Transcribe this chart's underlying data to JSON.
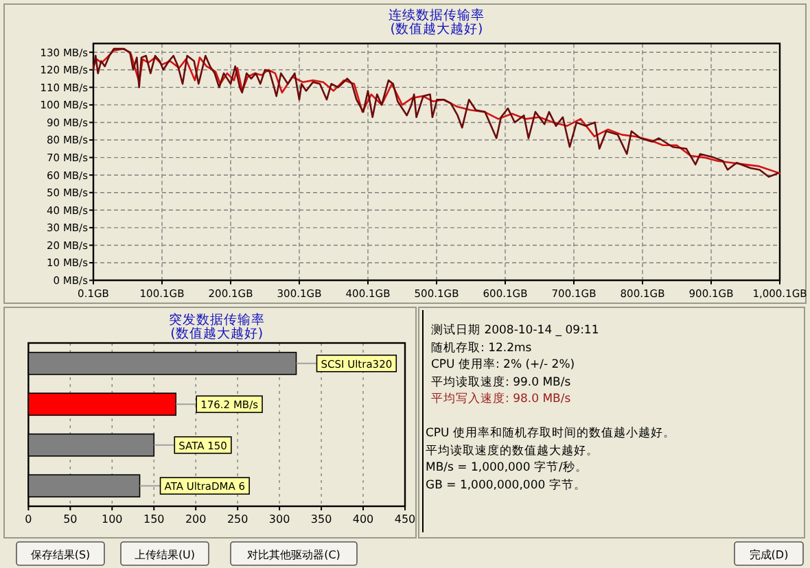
{
  "chart_data": [
    {
      "type": "line",
      "title": "连续数据传输率",
      "subtitle": "(数值越大越好)",
      "grid": true,
      "line_style": "solid",
      "xlim": [
        0.1,
        1000.1
      ],
      "ylim": [
        0,
        135
      ],
      "xticks": [
        {
          "value": 0.1,
          "label": "0.1GB"
        },
        {
          "value": 100.1,
          "label": "100.1GB"
        },
        {
          "value": 200.1,
          "label": "200.1GB"
        },
        {
          "value": 300.1,
          "label": "300.1GB"
        },
        {
          "value": 400.1,
          "label": "400.1GB"
        },
        {
          "value": 500.1,
          "label": "500.1GB"
        },
        {
          "value": 600.1,
          "label": "600.1GB"
        },
        {
          "value": 700.1,
          "label": "700.1GB"
        },
        {
          "value": 800.1,
          "label": "800.1GB"
        },
        {
          "value": 900.1,
          "label": "900.1GB"
        },
        {
          "value": 1000.1,
          "label": "1,000.1GB"
        }
      ],
      "yticks": [
        {
          "value": 0,
          "label": "0 MB/s"
        },
        {
          "value": 10,
          "label": "10 MB/s"
        },
        {
          "value": 20,
          "label": "20 MB/s"
        },
        {
          "value": 30,
          "label": "30 MB/s"
        },
        {
          "value": 40,
          "label": "40 MB/s"
        },
        {
          "value": 50,
          "label": "50 MB/s"
        },
        {
          "value": 60,
          "label": "60 MB/s"
        },
        {
          "value": 70,
          "label": "70 MB/s"
        },
        {
          "value": 80,
          "label": "80 MB/s"
        },
        {
          "value": 90,
          "label": "90 MB/s"
        },
        {
          "value": 100,
          "label": "100 MB/s"
        },
        {
          "value": 110,
          "label": "110 MB/s"
        },
        {
          "value": 120,
          "label": "120 MB/s"
        },
        {
          "value": 130,
          "label": "130 MB/s"
        }
      ],
      "series": [
        {
          "color": "#d41414",
          "x": [
            0.1,
            5,
            12,
            20,
            30,
            45,
            55,
            60,
            66.8,
            72,
            80,
            90,
            100,
            112,
            125,
            135,
            148,
            155,
            165,
            178,
            185,
            195,
            205,
            210,
            217,
            225,
            235,
            245,
            255,
            265,
            275,
            290,
            305,
            320,
            335,
            350,
            365,
            380,
            392,
            405,
            420,
            435,
            450,
            465,
            480,
            495,
            510,
            530,
            550,
            570,
            590,
            610,
            630,
            650,
            670,
            690,
            710,
            730,
            750,
            770,
            790,
            810,
            830,
            850,
            870,
            890,
            910,
            930,
            950,
            970,
            985,
            1000.1
          ],
          "values": [
            122,
            126,
            124,
            127,
            131,
            132,
            129,
            122,
            113,
            126,
            124,
            127,
            123,
            125,
            121,
            126,
            114,
            127,
            122,
            119,
            112,
            118,
            114,
            121,
            108,
            116,
            118,
            117,
            120,
            118,
            107,
            116,
            113,
            114,
            113,
            108,
            114,
            112,
            96,
            106,
            100,
            112,
            100,
            104,
            105,
            102,
            103,
            99,
            97,
            96,
            92,
            95,
            92,
            93,
            90,
            88,
            92,
            82,
            86,
            83,
            82,
            80,
            77,
            77,
            71,
            70,
            68,
            67,
            66,
            65,
            63,
            61
          ]
        },
        {
          "color": "#6a0c0c",
          "x": [
            0.1,
            3.4,
            6.8,
            11.4,
            16.8,
            23.4,
            30.1,
            43.4,
            53.4,
            58.1,
            63.4,
            66.8,
            70.1,
            76.8,
            83.4,
            90.1,
            96.8,
            102.1,
            110.1,
            116.8,
            123.4,
            130.1,
            136.8,
            146.8,
            153.4,
            163.4,
            170.1,
            176.8,
            183.4,
            190.1,
            200.1,
            206.8,
            213.4,
            216.8,
            223.4,
            230.1,
            236.8,
            243.4,
            250.1,
            256.8,
            263.4,
            266.8,
            273.4,
            283.4,
            293.4,
            300.1,
            303.4,
            310.1,
            320.1,
            330.1,
            340.1,
            346.8,
            356.8,
            370.1,
            376.8,
            383.4,
            393.4,
            400.1,
            406.8,
            413.4,
            420.1,
            430.1,
            436.8,
            443.4,
            450.1,
            456.8,
            463.4,
            467.3,
            470.7,
            480.7,
            490.7,
            494,
            500.7,
            510.7,
            520.7,
            530.7,
            537.3,
            547.3,
            557.3,
            570.7,
            587.3,
            594,
            604,
            614,
            627.3,
            634,
            644,
            657.3,
            664,
            674,
            684,
            694,
            704,
            717.3,
            730.7,
            737.3,
            747.3,
            764,
            777.3,
            784,
            797.3,
            814,
            824,
            844,
            864,
            877.3,
            884,
            904,
            917.3,
            924,
            937.3,
            957.3,
            970.7,
            984,
            997.3
          ],
          "values": [
            120,
            128,
            118,
            125,
            122,
            128,
            132,
            132,
            130,
            120,
            127,
            110,
            127,
            128,
            118,
            128,
            125,
            120,
            125,
            128,
            122,
            112,
            128,
            125,
            112,
            128,
            122,
            118,
            110,
            118,
            112,
            122,
            110,
            107,
            118,
            115,
            118,
            112,
            120,
            119,
            110,
            105,
            118,
            112,
            118,
            103,
            112,
            108,
            113,
            112,
            103,
            112,
            110,
            115,
            112,
            103,
            96,
            108,
            93,
            106,
            100,
            114,
            112,
            102,
            98,
            94,
            100,
            106,
            93,
            105,
            106,
            93,
            103,
            103,
            101,
            94,
            87,
            103,
            97,
            96,
            81,
            93,
            98,
            90,
            94,
            81,
            96,
            89,
            96,
            88,
            93,
            76,
            90,
            88,
            90,
            75,
            85,
            83,
            72,
            85,
            81,
            79,
            81,
            76,
            75,
            66,
            72,
            70,
            68,
            63,
            67,
            64,
            63,
            59,
            61
          ]
        }
      ]
    },
    {
      "type": "bar",
      "orientation": "horizontal",
      "title": "突发数据传输率",
      "subtitle": "(数值越大越好)",
      "grid": "x",
      "categories": [
        "SCSI Ultra320",
        null,
        "SATA 150",
        "ATA UltraDMA 6"
      ],
      "values": [
        320,
        176.2,
        150,
        133
      ],
      "value_labels": [
        null,
        "176.2 MB/s",
        null,
        null
      ],
      "colors": [
        "#808080",
        "#ff0000",
        "#808080",
        "#808080"
      ],
      "xlim": [
        0,
        450
      ],
      "xticks": [
        0,
        50,
        100,
        150,
        200,
        250,
        300,
        350,
        400,
        450
      ]
    },
    {
      "type": "other",
      "annotations": [
        "测试日期 2008-10-14 _ 09:11",
        "随机存取: 12.2ms",
        "CPU 使用率: 2% (+/- 2%)",
        "平均读取速度: 99.0 MB/s",
        "平均写入速度: 98.0 MB/s",
        "CPU 使用率和随机存取时间的数值越小越好。",
        "平均读取速度的数值越大越好。",
        "MB/s = 1,000,000 字节/秒。",
        "GB = 1,000,000,000 字节。",
        "保存结果(S)",
        "上传结果(U)",
        "对比其他驱动器(C)",
        "完成(D)"
      ]
    }
  ]
}
